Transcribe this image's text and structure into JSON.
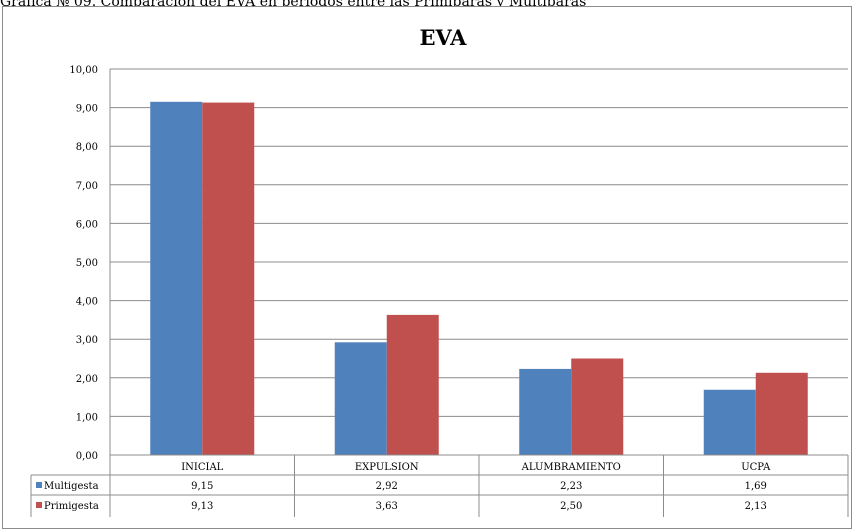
{
  "caption": "Gráfica № 09. Comparación del EVA en periodos entre las Primíparas y Multíparas",
  "chart_data": {
    "type": "bar",
    "title": "EVA",
    "categories": [
      "INICIAL",
      "EXPULSION",
      "ALUMBRAMIENTO",
      "UCPA"
    ],
    "series": [
      {
        "name": "Multigesta",
        "values": [
          9.15,
          2.92,
          2.23,
          1.69
        ],
        "labels": [
          "9,15",
          "2,92",
          "2,23",
          "1,69"
        ],
        "color": "#4f81bd"
      },
      {
        "name": "Primigesta",
        "values": [
          9.13,
          3.63,
          2.5,
          2.13
        ],
        "labels": [
          "9,13",
          "3,63",
          "2,50",
          "2,13"
        ],
        "color": "#c0504d"
      }
    ],
    "ylim": [
      0,
      10
    ],
    "yticks": [
      "0,00",
      "1,00",
      "2,00",
      "3,00",
      "4,00",
      "5,00",
      "6,00",
      "7,00",
      "8,00",
      "9,00",
      "10,00"
    ],
    "grid": true,
    "legend": "data-table",
    "xlabel": "",
    "ylabel": ""
  }
}
